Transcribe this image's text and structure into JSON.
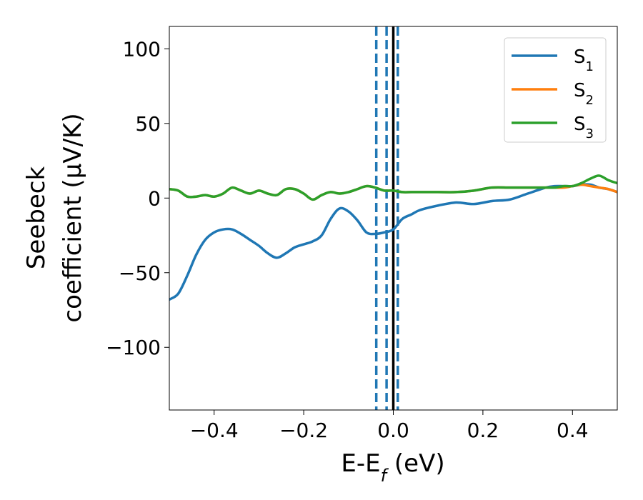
{
  "chart_data": {
    "type": "line",
    "xlabel": {
      "main": "E-E",
      "sub": "f",
      "unit": " (eV)"
    },
    "ylabel": {
      "line1": "Seebeck",
      "line2": "coefficient  (μV/K)"
    },
    "xlim": [
      -0.5,
      0.5
    ],
    "ylim": [
      -142,
      115
    ],
    "xticks": [
      -0.4,
      -0.2,
      0.0,
      0.2,
      0.4
    ],
    "xtick_labels": [
      "−0.4",
      "−0.2",
      "0.0",
      "0.2",
      "0.4"
    ],
    "yticks": [
      100,
      50,
      0,
      -50,
      -100
    ],
    "ytick_labels": [
      "100",
      "50",
      "0",
      "−50",
      "−100"
    ],
    "grid": false,
    "legend_position": "top-right",
    "vertical_lines": [
      {
        "x": -0.038,
        "style": "dashed",
        "color": "#1f77b4"
      },
      {
        "x": -0.015,
        "style": "dashed",
        "color": "#1f77b4"
      },
      {
        "x": 0.01,
        "style": "dashed",
        "color": "#1f77b4"
      },
      {
        "x": 0.0,
        "style": "solid",
        "color": "#000000"
      }
    ],
    "series": [
      {
        "name": "S",
        "sub": "1",
        "color": "#1f77b4",
        "x": [
          -0.5,
          -0.48,
          -0.46,
          -0.44,
          -0.42,
          -0.4,
          -0.38,
          -0.36,
          -0.34,
          -0.32,
          -0.3,
          -0.28,
          -0.26,
          -0.24,
          -0.22,
          -0.2,
          -0.18,
          -0.16,
          -0.14,
          -0.12,
          -0.1,
          -0.08,
          -0.06,
          -0.04,
          -0.02,
          0.0,
          0.02,
          0.04,
          0.06,
          0.1,
          0.14,
          0.18,
          0.22,
          0.26,
          0.3,
          0.34,
          0.36,
          0.38,
          0.4,
          0.42,
          0.44,
          0.46,
          0.48,
          0.5
        ],
        "y": [
          -68,
          -64,
          -52,
          -38,
          -28,
          -23,
          -21,
          -21,
          -24,
          -28,
          -32,
          -37,
          -40,
          -37,
          -33,
          -31,
          -29,
          -25,
          -14,
          -7,
          -9,
          -15,
          -23,
          -24,
          -23,
          -21,
          -14,
          -11,
          -8,
          -5,
          -3,
          -4,
          -2,
          -1,
          3,
          7,
          8,
          8,
          8,
          9,
          9,
          7,
          6,
          4
        ]
      },
      {
        "name": "S",
        "sub": "2",
        "color": "#ff7f0e",
        "x": [
          -0.5,
          -0.48,
          -0.46,
          -0.44,
          -0.42,
          -0.4,
          -0.38,
          -0.36,
          -0.34,
          -0.32,
          -0.3,
          -0.28,
          -0.26,
          -0.24,
          -0.22,
          -0.2,
          -0.18,
          -0.16,
          -0.14,
          -0.12,
          -0.1,
          -0.08,
          -0.06,
          -0.04,
          -0.02,
          0.0,
          0.02,
          0.04,
          0.06,
          0.1,
          0.14,
          0.18,
          0.22,
          0.26,
          0.3,
          0.34,
          0.36,
          0.38,
          0.4,
          0.42,
          0.44,
          0.46,
          0.48,
          0.5
        ],
        "y": [
          6,
          5,
          1,
          1,
          2,
          1,
          3,
          7,
          5,
          3,
          5,
          3,
          2,
          6,
          6,
          3,
          -1,
          2,
          4,
          3,
          4,
          6,
          8,
          7,
          5,
          5,
          4,
          4,
          4,
          4,
          4,
          5,
          7,
          7,
          7,
          7,
          7,
          7,
          8,
          9,
          8,
          7,
          6,
          4
        ]
      },
      {
        "name": "S",
        "sub": "3",
        "color": "#2ca02c",
        "x": [
          -0.5,
          -0.48,
          -0.46,
          -0.44,
          -0.42,
          -0.4,
          -0.38,
          -0.36,
          -0.34,
          -0.32,
          -0.3,
          -0.28,
          -0.26,
          -0.24,
          -0.22,
          -0.2,
          -0.18,
          -0.16,
          -0.14,
          -0.12,
          -0.1,
          -0.08,
          -0.06,
          -0.04,
          -0.02,
          0.0,
          0.02,
          0.04,
          0.06,
          0.1,
          0.14,
          0.18,
          0.22,
          0.26,
          0.3,
          0.34,
          0.36,
          0.38,
          0.4,
          0.42,
          0.44,
          0.46,
          0.48,
          0.5
        ],
        "y": [
          6,
          5,
          1,
          1,
          2,
          1,
          3,
          7,
          5,
          3,
          5,
          3,
          2,
          6,
          6,
          3,
          -1,
          2,
          4,
          3,
          4,
          6,
          8,
          7,
          5,
          5,
          4,
          4,
          4,
          4,
          4,
          5,
          7,
          7,
          7,
          7,
          7,
          8,
          8,
          10,
          13,
          15,
          12,
          10
        ]
      }
    ]
  }
}
